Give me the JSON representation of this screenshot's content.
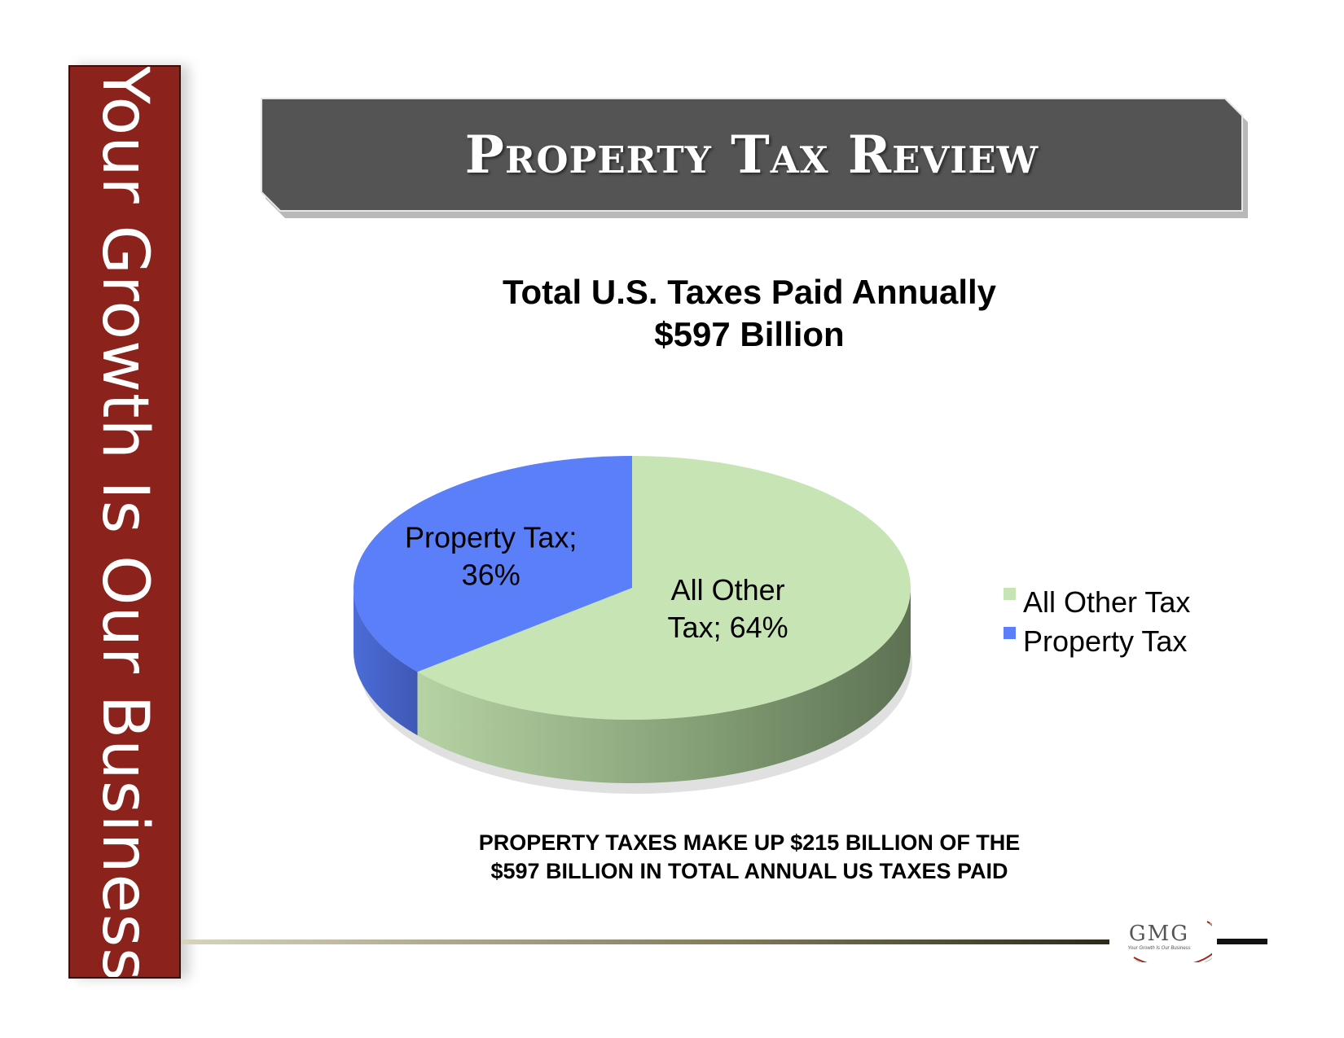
{
  "side_band": {
    "text": "Your Growth Is Our Business",
    "color": "#8b231c"
  },
  "header": {
    "title": "Property Tax Review"
  },
  "chart_data": {
    "type": "pie",
    "title": "Total U.S. Taxes Paid Annually",
    "subtitle": "$597 Billion",
    "slices": [
      {
        "name": "All Other Tax",
        "value": 64,
        "label_lines": [
          "All Other",
          "Tax; 64%"
        ],
        "color": "#c7e5b4"
      },
      {
        "name": "Property Tax",
        "value": 36,
        "label_lines": [
          "Property Tax;",
          "36%"
        ],
        "color": "#5a7ff8"
      }
    ],
    "legend": {
      "placement": "right",
      "entries": [
        "All Other Tax",
        "Property Tax"
      ]
    }
  },
  "footer": {
    "line1": "PROPERTY TAXES MAKE UP $215 BILLION OF THE",
    "line2": "$597 BILLION IN TOTAL ANNUAL US TAXES PAID"
  },
  "logo": {
    "mark": "GMG",
    "tagline": "Your Growth Is Our Business"
  }
}
